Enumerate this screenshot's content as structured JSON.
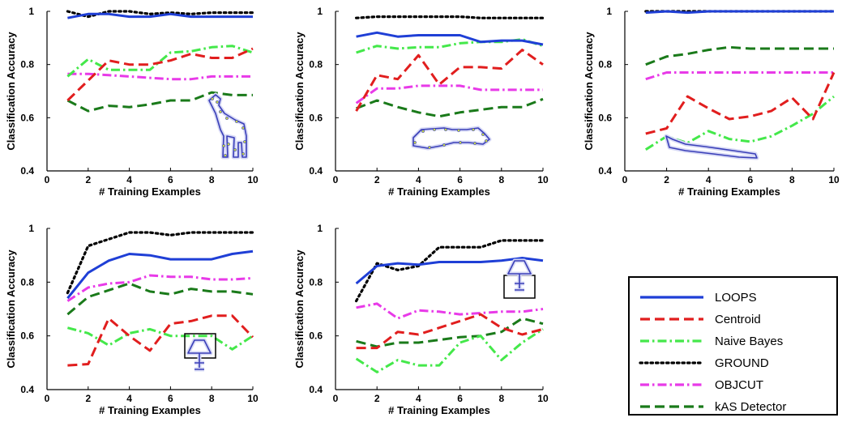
{
  "figure": {
    "background": "#ffffff"
  },
  "chart_data": [
    {
      "type": "line",
      "title": "",
      "inset_icon": "giraffe-icon",
      "xlabel": "# Training Examples",
      "ylabel": "Classification Accuracy",
      "xlim": [
        0,
        10
      ],
      "ylim": [
        0.4,
        1.0
      ],
      "xticks": [
        0,
        2,
        4,
        6,
        8,
        10
      ],
      "yticks": [
        0.4,
        0.6,
        0.8,
        1.0
      ],
      "ytick_labels": [
        "0.4",
        "0.6",
        "0.8",
        "1"
      ],
      "x": [
        1,
        2,
        3,
        4,
        5,
        6,
        7,
        8,
        9,
        10
      ],
      "series": [
        {
          "key": "loops",
          "values": [
            0.975,
            0.99,
            0.99,
            0.98,
            0.98,
            0.99,
            0.98,
            0.98,
            0.98,
            0.98
          ]
        },
        {
          "key": "centroid",
          "values": [
            0.665,
            0.74,
            0.815,
            0.8,
            0.8,
            0.815,
            0.84,
            0.825,
            0.825,
            0.86
          ]
        },
        {
          "key": "naive",
          "values": [
            0.755,
            0.82,
            0.78,
            0.78,
            0.78,
            0.845,
            0.85,
            0.865,
            0.87,
            0.845
          ]
        },
        {
          "key": "ground",
          "values": [
            1.0,
            0.98,
            1.0,
            1.0,
            0.99,
            0.995,
            0.99,
            0.995,
            0.995,
            0.995
          ]
        },
        {
          "key": "objcut",
          "values": [
            0.765,
            0.765,
            0.76,
            0.755,
            0.75,
            0.745,
            0.745,
            0.755,
            0.755,
            0.755
          ]
        },
        {
          "key": "kas",
          "values": [
            0.665,
            0.625,
            0.645,
            0.64,
            0.65,
            0.665,
            0.665,
            0.695,
            0.685,
            0.685
          ]
        }
      ]
    },
    {
      "type": "line",
      "title": "",
      "inset_icon": "airplane-icon",
      "xlabel": "# Training Examples",
      "ylabel": "Classification Accuracy",
      "xlim": [
        0,
        10
      ],
      "ylim": [
        0.4,
        1.0
      ],
      "xticks": [
        0,
        2,
        4,
        6,
        8,
        10
      ],
      "yticks": [
        0.4,
        0.6,
        0.8,
        1.0
      ],
      "ytick_labels": [
        "0.4",
        "0.6",
        "0.8",
        "1"
      ],
      "x": [
        1,
        2,
        3,
        4,
        5,
        6,
        7,
        8,
        9,
        10
      ],
      "series": [
        {
          "key": "loops",
          "values": [
            0.905,
            0.92,
            0.905,
            0.91,
            0.91,
            0.91,
            0.885,
            0.89,
            0.89,
            0.875
          ]
        },
        {
          "key": "centroid",
          "values": [
            0.625,
            0.76,
            0.745,
            0.835,
            0.725,
            0.79,
            0.79,
            0.785,
            0.855,
            0.8
          ]
        },
        {
          "key": "naive",
          "values": [
            0.845,
            0.87,
            0.86,
            0.865,
            0.865,
            0.88,
            0.885,
            0.885,
            0.895,
            0.87
          ]
        },
        {
          "key": "ground",
          "values": [
            0.975,
            0.98,
            0.98,
            0.98,
            0.98,
            0.98,
            0.975,
            0.975,
            0.975,
            0.975
          ]
        },
        {
          "key": "objcut",
          "values": [
            0.655,
            0.71,
            0.71,
            0.72,
            0.72,
            0.72,
            0.705,
            0.705,
            0.705,
            0.705
          ]
        },
        {
          "key": "kas",
          "values": [
            0.635,
            0.665,
            0.64,
            0.62,
            0.605,
            0.62,
            0.63,
            0.64,
            0.64,
            0.67
          ]
        }
      ]
    },
    {
      "type": "line",
      "title": "",
      "inset_icon": "car-icon",
      "xlabel": "# Training Examples",
      "ylabel": "Classification Accuracy",
      "xlim": [
        0,
        10
      ],
      "ylim": [
        0.4,
        1.0
      ],
      "xticks": [
        0,
        2,
        4,
        6,
        8,
        10
      ],
      "yticks": [
        0.4,
        0.6,
        0.8,
        1.0
      ],
      "ytick_labels": [
        "0.4",
        "0.6",
        "0.8",
        "1"
      ],
      "x": [
        1,
        2,
        3,
        4,
        5,
        6,
        7,
        8,
        9,
        10
      ],
      "series": [
        {
          "key": "loops",
          "values": [
            0.995,
            1.0,
            0.995,
            1.0,
            1.0,
            1.0,
            1.0,
            1.0,
            1.0,
            1.0
          ]
        },
        {
          "key": "centroid",
          "values": [
            0.54,
            0.56,
            0.68,
            0.635,
            0.595,
            0.605,
            0.625,
            0.675,
            0.595,
            0.77
          ]
        },
        {
          "key": "naive",
          "values": [
            0.48,
            0.53,
            0.505,
            0.55,
            0.52,
            0.51,
            0.53,
            0.57,
            0.615,
            0.68
          ]
        },
        {
          "key": "ground",
          "values": [
            1.0,
            1.0,
            1.0,
            1.0,
            1.0,
            1.0,
            1.0,
            1.0,
            1.0,
            1.0
          ]
        },
        {
          "key": "objcut",
          "values": [
            0.745,
            0.77,
            0.77,
            0.77,
            0.77,
            0.77,
            0.77,
            0.77,
            0.77,
            0.77
          ]
        },
        {
          "key": "kas",
          "values": [
            0.8,
            0.83,
            0.84,
            0.855,
            0.865,
            0.86,
            0.86,
            0.86,
            0.86,
            0.86
          ]
        }
      ]
    },
    {
      "type": "line",
      "title": "",
      "inset_icon": "lamp-icon",
      "xlabel": "# Training Examples",
      "ylabel": "Classification Accuracy",
      "xlim": [
        0,
        10
      ],
      "ylim": [
        0.4,
        1.0
      ],
      "xticks": [
        0,
        2,
        4,
        6,
        8,
        10
      ],
      "yticks": [
        0.4,
        0.6,
        0.8,
        1.0
      ],
      "ytick_labels": [
        "0.4",
        "0.6",
        "0.8",
        "1"
      ],
      "x": [
        1,
        2,
        3,
        4,
        5,
        6,
        7,
        8,
        9,
        10
      ],
      "series": [
        {
          "key": "loops",
          "values": [
            0.74,
            0.835,
            0.88,
            0.905,
            0.9,
            0.885,
            0.885,
            0.885,
            0.905,
            0.915
          ]
        },
        {
          "key": "centroid",
          "values": [
            0.49,
            0.495,
            0.665,
            0.6,
            0.545,
            0.645,
            0.655,
            0.675,
            0.675,
            0.595
          ]
        },
        {
          "key": "naive",
          "values": [
            0.63,
            0.61,
            0.565,
            0.61,
            0.625,
            0.6,
            0.6,
            0.6,
            0.55,
            0.6
          ]
        },
        {
          "key": "ground",
          "values": [
            0.76,
            0.935,
            0.96,
            0.985,
            0.985,
            0.975,
            0.985,
            0.985,
            0.985,
            0.985
          ]
        },
        {
          "key": "objcut",
          "values": [
            0.73,
            0.78,
            0.795,
            0.8,
            0.825,
            0.82,
            0.82,
            0.81,
            0.81,
            0.815
          ]
        },
        {
          "key": "kas",
          "values": [
            0.68,
            0.745,
            0.77,
            0.795,
            0.765,
            0.755,
            0.775,
            0.765,
            0.765,
            0.755
          ]
        }
      ]
    },
    {
      "type": "line",
      "title": "",
      "inset_icon": "lamp-icon",
      "xlabel": "# Training Examples",
      "ylabel": "Classification Accuracy",
      "xlim": [
        0,
        10
      ],
      "ylim": [
        0.4,
        1.0
      ],
      "xticks": [
        0,
        2,
        4,
        6,
        8,
        10
      ],
      "yticks": [
        0.4,
        0.6,
        0.8,
        1.0
      ],
      "ytick_labels": [
        "0.4",
        "0.6",
        "0.8",
        "1"
      ],
      "x": [
        1,
        2,
        3,
        4,
        5,
        6,
        7,
        8,
        9,
        10
      ],
      "series": [
        {
          "key": "loops",
          "values": [
            0.795,
            0.86,
            0.87,
            0.865,
            0.875,
            0.875,
            0.875,
            0.88,
            0.89,
            0.88
          ]
        },
        {
          "key": "centroid",
          "values": [
            0.555,
            0.555,
            0.615,
            0.605,
            0.63,
            0.655,
            0.68,
            0.63,
            0.605,
            0.625
          ]
        },
        {
          "key": "naive",
          "values": [
            0.515,
            0.465,
            0.51,
            0.49,
            0.49,
            0.575,
            0.6,
            0.51,
            0.575,
            0.625
          ]
        },
        {
          "key": "ground",
          "values": [
            0.73,
            0.87,
            0.845,
            0.86,
            0.93,
            0.93,
            0.93,
            0.955,
            0.955,
            0.955
          ]
        },
        {
          "key": "objcut",
          "values": [
            0.705,
            0.72,
            0.665,
            0.695,
            0.69,
            0.68,
            0.685,
            0.69,
            0.69,
            0.7
          ]
        },
        {
          "key": "kas",
          "values": [
            0.58,
            0.56,
            0.575,
            0.575,
            0.585,
            0.595,
            0.6,
            0.615,
            0.665,
            0.645
          ]
        }
      ]
    }
  ],
  "legend": {
    "placement": "bottom-right",
    "items": [
      {
        "key": "loops",
        "label": "LOOPS",
        "color": "#1f3fd6",
        "dash": "solid"
      },
      {
        "key": "centroid",
        "label": "Centroid",
        "color": "#e11e1e",
        "dash": "dashed"
      },
      {
        "key": "naive",
        "label": "Naive Bayes",
        "color": "#44e84a",
        "dash": "dashdot"
      },
      {
        "key": "ground",
        "label": "GROUND",
        "color": "#000000",
        "dash": "dotted"
      },
      {
        "key": "objcut",
        "label": "OBJCUT",
        "color": "#e83ae8",
        "dash": "dashdot"
      },
      {
        "key": "kas",
        "label": "kAS Detector",
        "color": "#1a7a1a",
        "dash": "dashed"
      }
    ]
  }
}
